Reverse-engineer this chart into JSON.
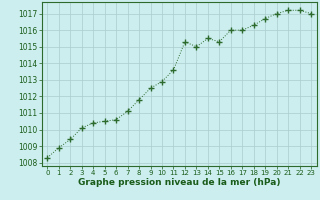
{
  "x": [
    0,
    1,
    2,
    3,
    4,
    5,
    6,
    7,
    8,
    9,
    10,
    11,
    12,
    13,
    14,
    15,
    16,
    17,
    18,
    19,
    20,
    21,
    22,
    23
  ],
  "y": [
    1008.3,
    1008.9,
    1009.4,
    1010.1,
    1010.4,
    1010.5,
    1010.6,
    1011.1,
    1011.8,
    1012.5,
    1012.9,
    1013.6,
    1015.3,
    1015.0,
    1015.5,
    1015.3,
    1016.0,
    1016.0,
    1016.3,
    1016.7,
    1017.0,
    1017.2,
    1017.2,
    1017.0
  ],
  "line_color": "#2d6a2d",
  "marker": "+",
  "marker_size": 4,
  "linewidth": 0.7,
  "bg_color": "#cceeee",
  "grid_color": "#aacccc",
  "xlabel": "Graphe pression niveau de la mer (hPa)",
  "xlabel_fontsize": 6.5,
  "xlabel_color": "#1a5c1a",
  "tick_label_color": "#1a5c1a",
  "ytick_fontsize": 5.5,
  "xtick_fontsize": 5.0,
  "ylim": [
    1007.8,
    1017.7
  ],
  "xlim": [
    -0.5,
    23.5
  ],
  "yticks": [
    1008,
    1009,
    1010,
    1011,
    1012,
    1013,
    1014,
    1015,
    1016,
    1017
  ],
  "xticks": [
    0,
    1,
    2,
    3,
    4,
    5,
    6,
    7,
    8,
    9,
    10,
    11,
    12,
    13,
    14,
    15,
    16,
    17,
    18,
    19,
    20,
    21,
    22,
    23
  ]
}
